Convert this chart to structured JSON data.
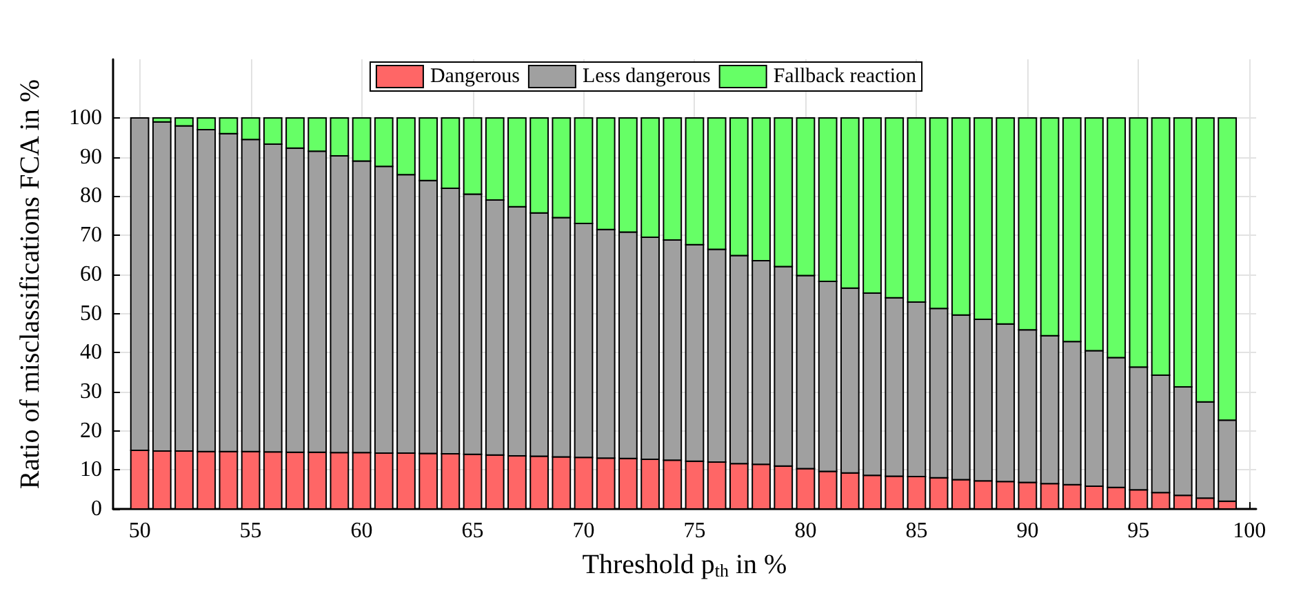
{
  "chart_data": {
    "type": "bar",
    "stacked": true,
    "xlabel": "Threshold p$_{th}$ in %",
    "ylabel": "Ratio of misclassifications FCA in %",
    "x": [
      50,
      51,
      52,
      53,
      54,
      55,
      56,
      57,
      58,
      59,
      60,
      61,
      62,
      63,
      64,
      65,
      66,
      67,
      68,
      69,
      70,
      71,
      72,
      73,
      74,
      75,
      76,
      77,
      78,
      79,
      80,
      81,
      82,
      83,
      84,
      85,
      86,
      87,
      88,
      89,
      90,
      91,
      92,
      93,
      94,
      95,
      96,
      97,
      98,
      99
    ],
    "series": [
      {
        "name": "Dangerous",
        "color": "#ff6666",
        "values": [
          15,
          14.8,
          14.8,
          14.7,
          14.7,
          14.7,
          14.6,
          14.5,
          14.5,
          14.4,
          14.4,
          14.3,
          14.3,
          14.2,
          14.1,
          14,
          13.8,
          13.6,
          13.5,
          13.3,
          13.2,
          13,
          12.9,
          12.7,
          12.5,
          12.2,
          12,
          11.6,
          11.4,
          11,
          10.3,
          9.6,
          9.2,
          8.6,
          8.4,
          8.3,
          8,
          7.5,
          7.2,
          7,
          6.8,
          6.5,
          6.2,
          5.8,
          5.5,
          4.9,
          4.2,
          3.5,
          2.8,
          2
        ]
      },
      {
        "name": "Less dangerous",
        "color": "#a0a0a0",
        "values": [
          85,
          84.2,
          83.2,
          82.3,
          81.3,
          79.8,
          78.7,
          77.8,
          77,
          75.9,
          74.6,
          73.3,
          71.2,
          69.8,
          67.9,
          66.5,
          65.2,
          63.7,
          62.2,
          61.2,
          59.8,
          58.5,
          57.9,
          56.8,
          56.3,
          55.4,
          54.4,
          53.2,
          52.1,
          51,
          49.4,
          48.6,
          47.3,
          46.6,
          45.6,
          44.6,
          43.3,
          42.1,
          41.3,
          40.3,
          39,
          37.8,
          36.6,
          34.7,
          33.2,
          31.4,
          30,
          27.7,
          24.6,
          20.7
        ]
      },
      {
        "name": "Fallback reaction",
        "color": "#66ff66",
        "values": [
          0,
          1,
          2,
          3,
          4,
          5.5,
          6.7,
          7.7,
          8.5,
          9.7,
          11,
          12.4,
          14.5,
          16,
          18,
          19.5,
          21,
          22.7,
          24.3,
          25.5,
          27,
          28.5,
          29.2,
          30.5,
          31.2,
          32.4,
          33.6,
          35.2,
          36.5,
          38,
          40.3,
          41.8,
          43.5,
          44.8,
          46,
          47.1,
          48.7,
          50.4,
          51.5,
          52.7,
          54.2,
          55.7,
          57.2,
          59.5,
          61.3,
          63.7,
          65.8,
          68.8,
          72.6,
          77.3
        ]
      }
    ],
    "xlim": [
      48.8,
      100.3
    ],
    "xticks": [
      50,
      55,
      60,
      65,
      70,
      75,
      80,
      85,
      90,
      95,
      100
    ],
    "ylim": [
      0,
      115
    ],
    "yticks": [
      0,
      10,
      20,
      30,
      40,
      50,
      60,
      70,
      80,
      90,
      100
    ],
    "grid": true,
    "legend": "top"
  }
}
